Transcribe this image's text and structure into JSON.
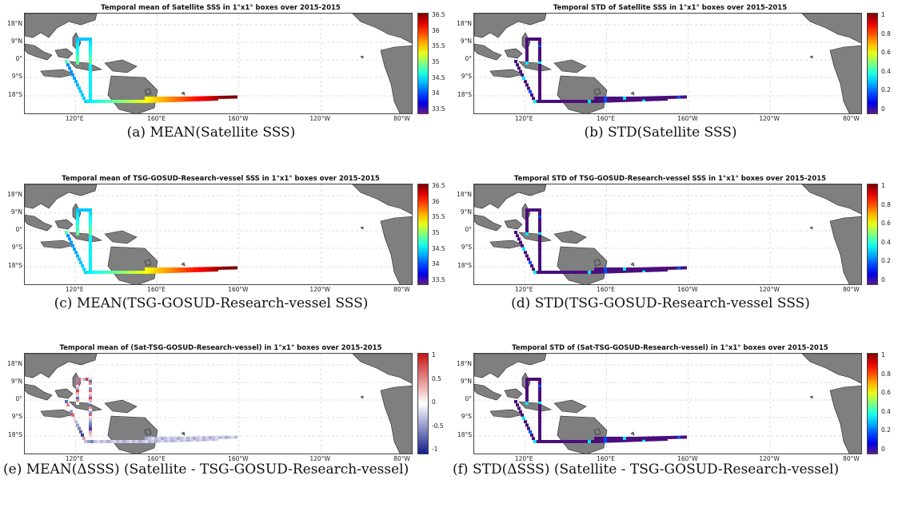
{
  "panels": [
    {
      "title": "Temporal mean of Satellite SSS in 1°x1° boxes over 2015-2015",
      "caption": "(a) MEAN(Satellite SSS)",
      "cbar": [
        "36.5",
        "36",
        "35.5",
        "35",
        "34.5",
        "34",
        "33.5"
      ],
      "cmap": "jet",
      "kind": "mean"
    },
    {
      "title": "Temporal STD of Satellite SSS in 1°x1° boxes over 2015-2015",
      "caption": "(b) STD(Satellite SSS)",
      "cbar": [
        "1",
        "0.8",
        "0.6",
        "0.4",
        "0.2",
        "0"
      ],
      "cmap": "jet",
      "kind": "std"
    },
    {
      "title": "Temporal mean of TSG-GOSUD-Research-vessel SSS in 1°x1° boxes over 2015-2015",
      "caption": "(c) MEAN(TSG-GOSUD-Research-vessel SSS)",
      "cbar": [
        "36.5",
        "36",
        "35.5",
        "35",
        "34.5",
        "34",
        "33.5"
      ],
      "cmap": "jet",
      "kind": "mean"
    },
    {
      "title": "Temporal STD of TSG-GOSUD-Research-vessel SSS in 1°x1° boxes over 2015-2015",
      "caption": "(d) STD(TSG-GOSUD-Research-vessel SSS)",
      "cbar": [
        "1",
        "0.8",
        "0.6",
        "0.4",
        "0.2",
        "0"
      ],
      "cmap": "jet",
      "kind": "std"
    },
    {
      "title": "Temporal mean of (Sat-TSG-GOSUD-Research-vessel) in 1°x1° boxes over 2015-2015",
      "caption": "(e) MEAN(ΔSSS) (Satellite - TSG-GOSUD-Research-vessel)",
      "cbar": [
        "1",
        "0.5",
        "0",
        "-0.5",
        "-1"
      ],
      "cmap": "rdbu",
      "kind": "diff"
    },
    {
      "title": "Temporal STD of (Sat-TSG-GOSUD-Research-vessel) in 1°x1° boxes over 2015-2015",
      "caption": "(f) STD(ΔSSS) (Satellite - TSG-GOSUD-Research-vessel)",
      "cbar": [
        "1",
        "0.8",
        "0.6",
        "0.4",
        "0.2",
        "0"
      ],
      "cmap": "jet",
      "kind": "std"
    }
  ],
  "lat_labels": [
    "18°N",
    "9°N",
    "0°",
    "9°S",
    "18°S"
  ],
  "lon_labels": [
    "120°E",
    "160°E",
    "160°W",
    "120°W",
    "80°W"
  ],
  "colors": {
    "land": "#7f7f7f",
    "coast": "#222222",
    "grid": "#cfcfcf"
  }
}
